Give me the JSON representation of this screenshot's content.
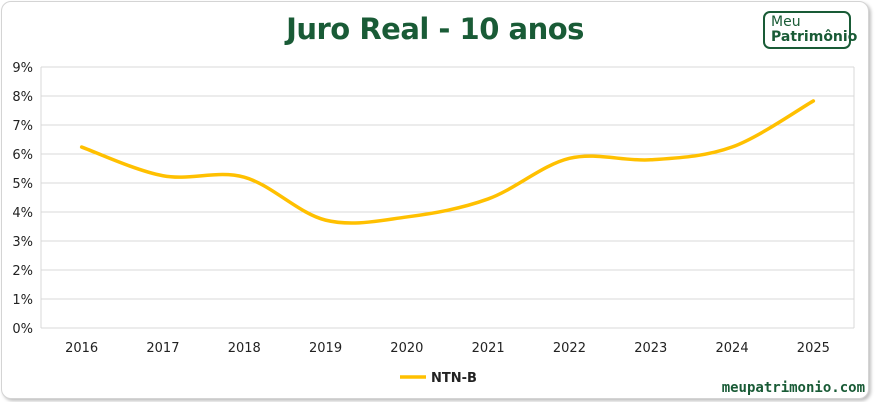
{
  "logo": {
    "line1": "Meu",
    "line2": "Patrimônio"
  },
  "footer": {
    "site": "meupatrimonio.com"
  },
  "chart_data": {
    "type": "line",
    "title": "Juro Real - 10 anos",
    "xlabel": "",
    "ylabel": "",
    "categories": [
      "2016",
      "2017",
      "2018",
      "2019",
      "2020",
      "2021",
      "2022",
      "2023",
      "2024",
      "2025"
    ],
    "series": [
      {
        "name": "NTN-B",
        "color": "#ffc000",
        "values": [
          6.24,
          5.25,
          5.2,
          3.72,
          3.83,
          4.45,
          5.85,
          5.8,
          6.24,
          7.83
        ]
      }
    ],
    "ylim": [
      0,
      9
    ],
    "yticks": [
      "0%",
      "1%",
      "2%",
      "3%",
      "4%",
      "5%",
      "6%",
      "7%",
      "8%",
      "9%"
    ],
    "grid": true,
    "smooth": true,
    "legend": "bottom"
  }
}
